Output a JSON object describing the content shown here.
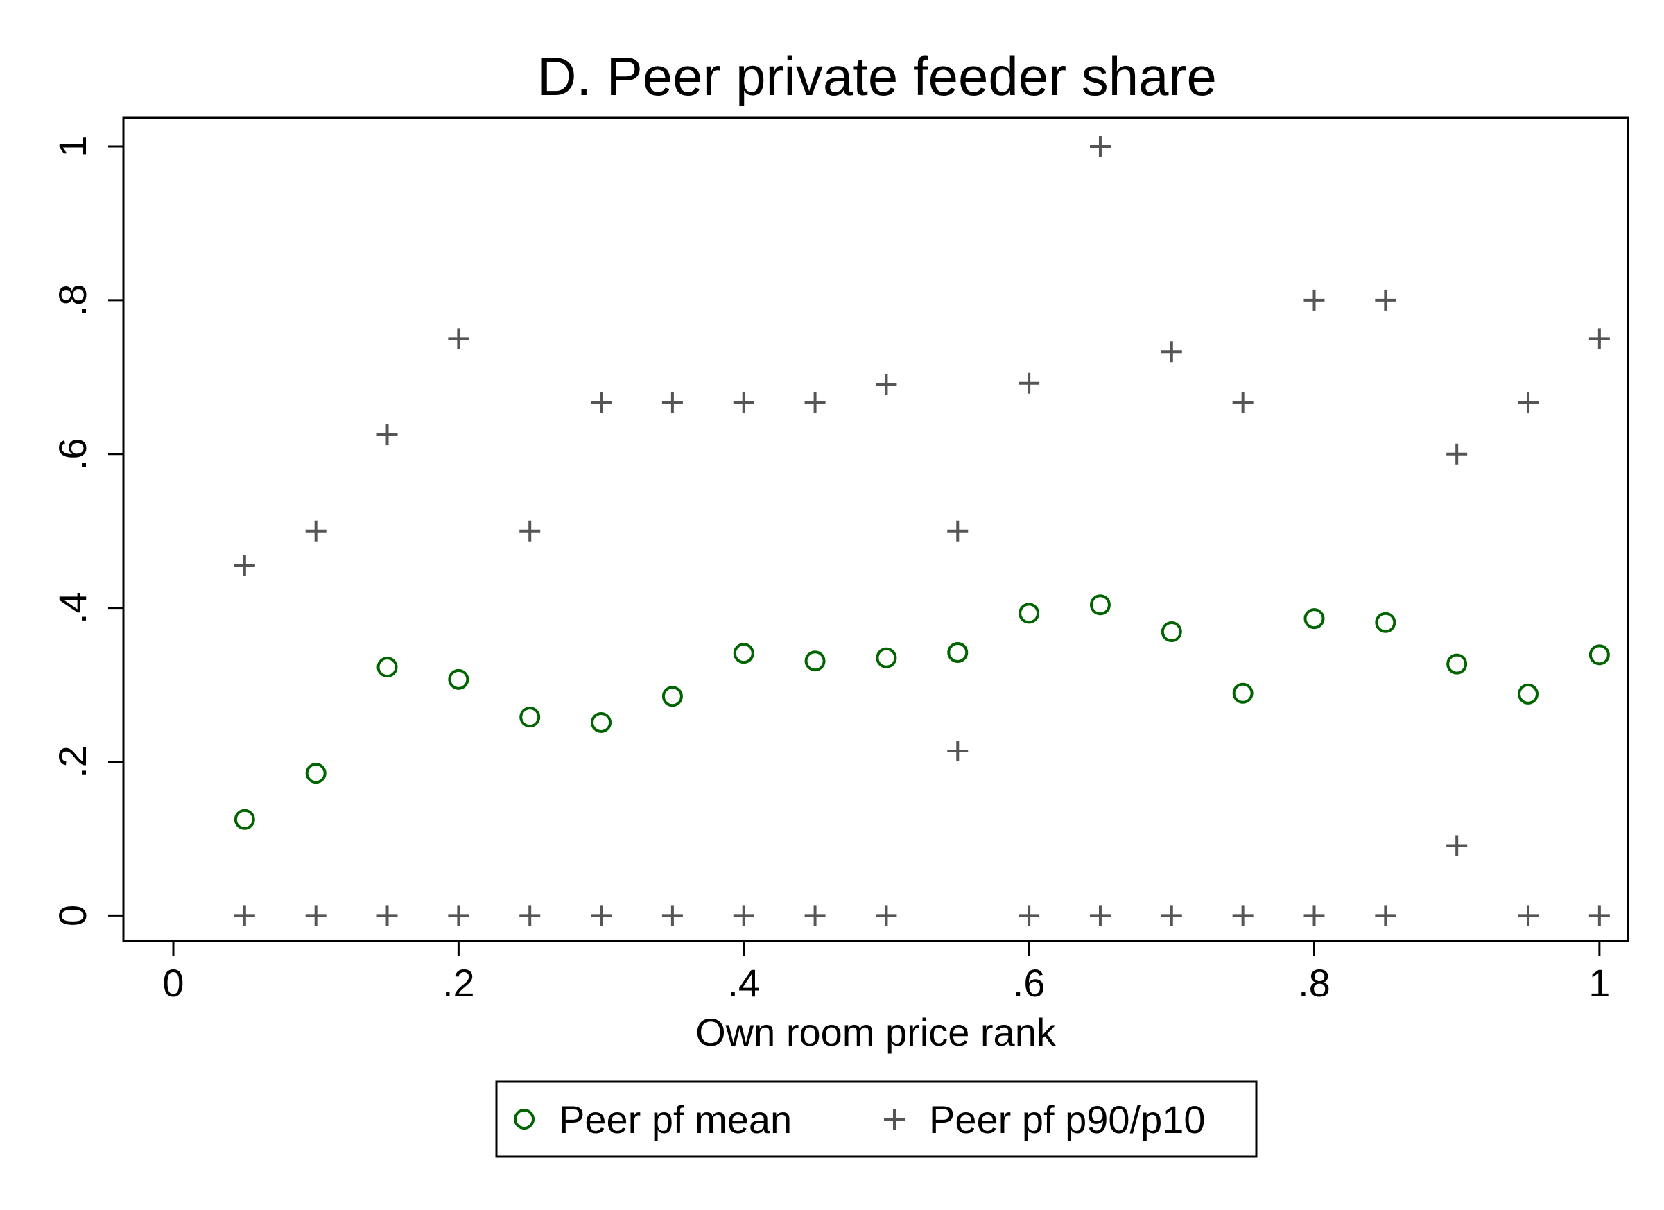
{
  "chart_data": {
    "type": "scatter",
    "title": "D. Peer private feeder share",
    "xlabel": "Own room price rank",
    "ylabel": "",
    "xlim": [
      -0.035,
      1.02
    ],
    "ylim": [
      -0.033,
      1.037
    ],
    "x_ticks": [
      0,
      0.2,
      0.4,
      0.6,
      0.8,
      1
    ],
    "x_tick_labels": [
      "0",
      ".2",
      ".4",
      ".6",
      ".8",
      "1"
    ],
    "y_ticks": [
      0,
      0.2,
      0.4,
      0.6,
      0.8,
      1
    ],
    "y_tick_labels": [
      "0",
      ".2",
      ".4",
      ".6",
      ".8",
      "1"
    ],
    "grid": false,
    "legend_position": "bottom-center",
    "colors": {
      "mean": "#006400",
      "percentiles": "#555555"
    },
    "series": [
      {
        "name": "Peer pf mean",
        "marker": "hollow-circle",
        "points": [
          [
            0.05,
            0.125
          ],
          [
            0.1,
            0.185
          ],
          [
            0.15,
            0.323
          ],
          [
            0.2,
            0.307
          ],
          [
            0.25,
            0.258
          ],
          [
            0.3,
            0.251
          ],
          [
            0.35,
            0.285
          ],
          [
            0.4,
            0.341
          ],
          [
            0.45,
            0.331
          ],
          [
            0.5,
            0.335
          ],
          [
            0.55,
            0.342
          ],
          [
            0.6,
            0.393
          ],
          [
            0.65,
            0.404
          ],
          [
            0.7,
            0.369
          ],
          [
            0.75,
            0.289
          ],
          [
            0.8,
            0.386
          ],
          [
            0.85,
            0.381
          ],
          [
            0.9,
            0.327
          ],
          [
            0.95,
            0.288
          ],
          [
            1.0,
            0.339
          ]
        ]
      },
      {
        "name": "Peer pf p90/p10",
        "marker": "plus",
        "points": [
          [
            0.05,
            0.455
          ],
          [
            0.05,
            0.0
          ],
          [
            0.1,
            0.5
          ],
          [
            0.1,
            0.0
          ],
          [
            0.15,
            0.625
          ],
          [
            0.15,
            0.0
          ],
          [
            0.2,
            0.75
          ],
          [
            0.2,
            0.0
          ],
          [
            0.25,
            0.5
          ],
          [
            0.25,
            0.0
          ],
          [
            0.3,
            0.667
          ],
          [
            0.3,
            0.0
          ],
          [
            0.35,
            0.667
          ],
          [
            0.35,
            0.0
          ],
          [
            0.4,
            0.667
          ],
          [
            0.4,
            0.0
          ],
          [
            0.45,
            0.667
          ],
          [
            0.45,
            0.0
          ],
          [
            0.5,
            0.69
          ],
          [
            0.5,
            0.0
          ],
          [
            0.55,
            0.5
          ],
          [
            0.55,
            0.214
          ],
          [
            0.6,
            0.692
          ],
          [
            0.6,
            0.0
          ],
          [
            0.65,
            1.0
          ],
          [
            0.65,
            0.0
          ],
          [
            0.7,
            0.733
          ],
          [
            0.7,
            0.0
          ],
          [
            0.75,
            0.667
          ],
          [
            0.75,
            0.0
          ],
          [
            0.8,
            0.8
          ],
          [
            0.8,
            0.0
          ],
          [
            0.85,
            0.8
          ],
          [
            0.85,
            0.0
          ],
          [
            0.9,
            0.6
          ],
          [
            0.9,
            0.091
          ],
          [
            0.95,
            0.667
          ],
          [
            0.95,
            0.0
          ],
          [
            1.0,
            0.75
          ],
          [
            1.0,
            0.0
          ]
        ]
      }
    ]
  }
}
